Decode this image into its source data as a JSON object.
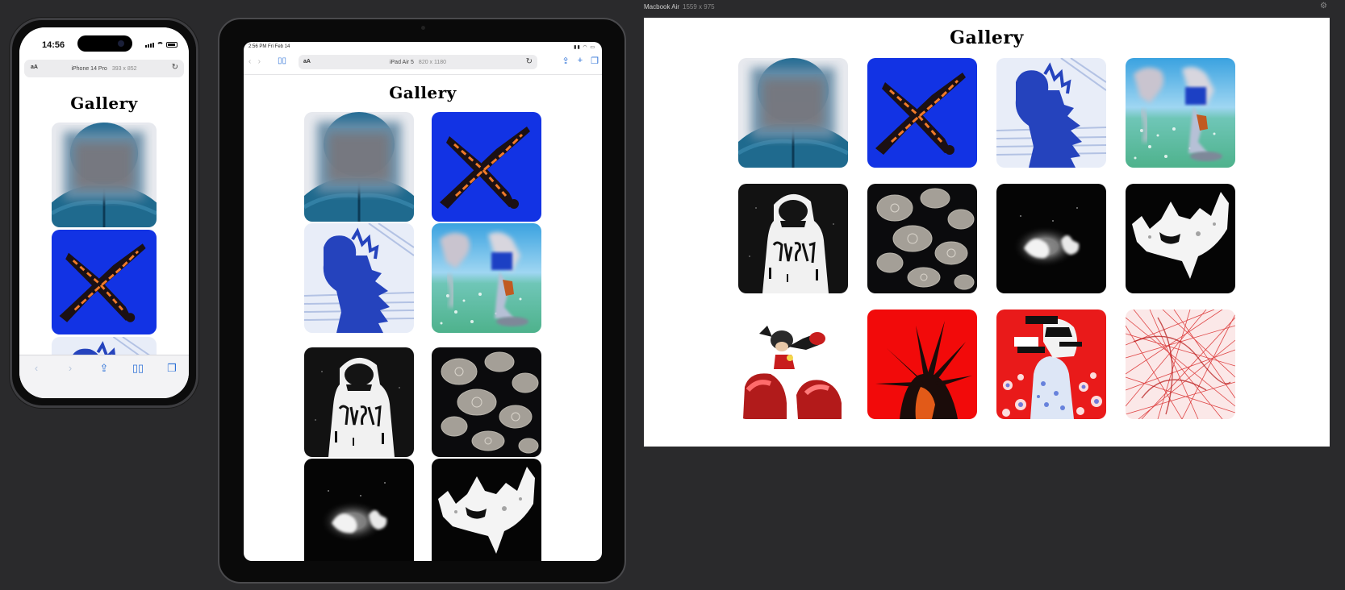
{
  "gallery": {
    "title": "Gallery"
  },
  "iphone": {
    "status_time": "14:56",
    "url_label": "iPhone 14 Pro",
    "url_dims": "393 x 852",
    "aa": "aA",
    "visible_tiles": [
      "blurred-portrait",
      "blue-bird",
      "blue-silhouette"
    ]
  },
  "ipad": {
    "status_time": "2:56 PM Fri Feb 14",
    "url_label": "iPad Air 5",
    "url_dims": "820 x 1180",
    "aa": "aA",
    "visible_tiles": [
      "blurred-portrait",
      "blue-bird",
      "blue-silhouette",
      "sky-skater",
      "hoodie-bw",
      "jellyfish",
      "white-glow",
      "white-ghost"
    ]
  },
  "macbook": {
    "device_label": "Macbook Air",
    "dims": "1559 x 975",
    "tiles": [
      "blurred-portrait",
      "blue-bird",
      "blue-silhouette",
      "sky-skater",
      "hoodie-bw",
      "jellyfish",
      "white-glow",
      "white-ghost",
      "robot-legs",
      "red-spike",
      "red-collage",
      "red-scribble"
    ]
  },
  "colors": {
    "page_bg": "#2a2a2c",
    "accent": "#2a6fd6"
  },
  "icons": [
    "back-icon",
    "forward-icon",
    "share-icon",
    "bookmarks-icon",
    "tabs-icon",
    "reload-icon",
    "new-tab-icon",
    "settings-icon"
  ]
}
